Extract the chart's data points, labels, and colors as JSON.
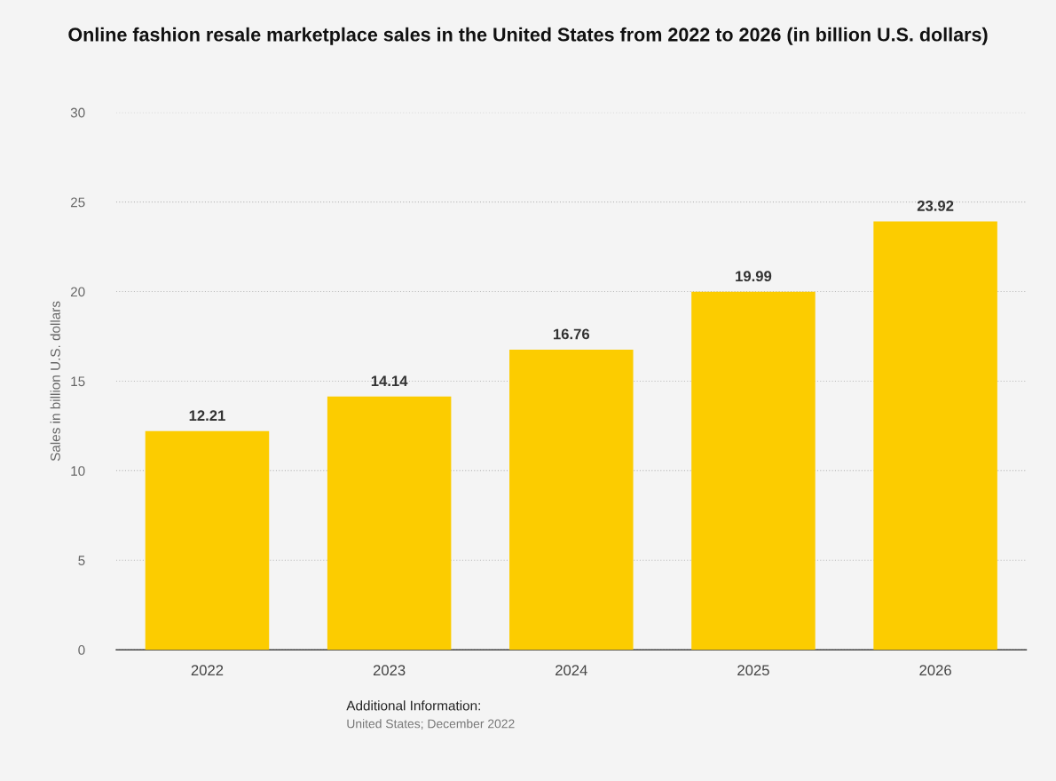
{
  "chart_data": {
    "type": "bar",
    "title": "Online fashion resale marketplace sales in the United States from 2022 to 2026 (in billion U.S. dollars)",
    "ylabel": "Sales in billion U.S. dollars",
    "categories": [
      "2022",
      "2023",
      "2024",
      "2025",
      "2026"
    ],
    "values": [
      12.21,
      14.14,
      16.76,
      19.99,
      23.92
    ],
    "color": "#fccc00",
    "ylim": [
      0,
      30
    ],
    "yticks": [
      0,
      5,
      10,
      15,
      20,
      25,
      30
    ],
    "grid": "y",
    "data_labels": true,
    "annotations": [
      "Additional Information:",
      "United States; December 2022"
    ]
  }
}
